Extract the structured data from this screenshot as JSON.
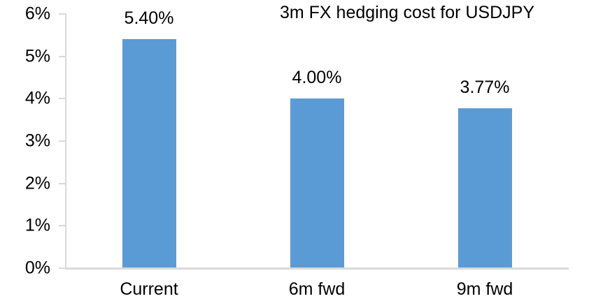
{
  "chart_data": {
    "type": "bar",
    "title": "3m FX hedging cost for USDJPY",
    "categories": [
      "Current",
      "6m fwd",
      "9m fwd"
    ],
    "values": [
      5.4,
      4.0,
      3.77
    ],
    "value_labels": [
      "5.40%",
      "4.00%",
      "3.77%"
    ],
    "xlabel": "",
    "ylabel": "",
    "ylim": [
      0,
      6
    ],
    "yticks": [
      {
        "value": 0,
        "label": "0%"
      },
      {
        "value": 1,
        "label": "1%"
      },
      {
        "value": 2,
        "label": "2%"
      },
      {
        "value": 3,
        "label": "3%"
      },
      {
        "value": 4,
        "label": "4%"
      },
      {
        "value": 5,
        "label": "5%"
      },
      {
        "value": 6,
        "label": "6%"
      }
    ],
    "grid": "off",
    "legend": "none",
    "bar_color": "#5B9BD5",
    "axis_color": "#D9D9D9",
    "text_color": "#000000"
  }
}
